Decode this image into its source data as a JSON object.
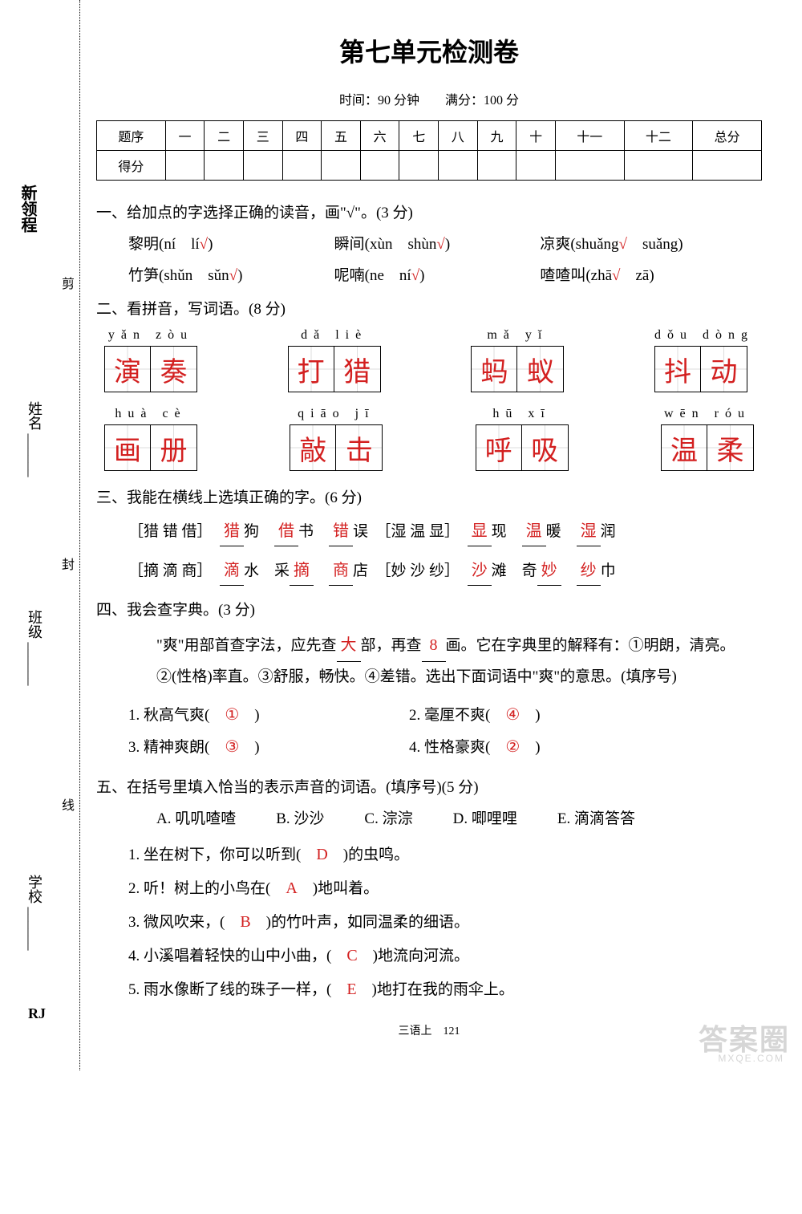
{
  "title": "第七单元检测卷",
  "subtitle": "时间：90 分钟　　满分：100 分",
  "brand": "新领程",
  "rj": "RJ",
  "side": {
    "name": "姓名",
    "class": "班级",
    "school": "学校",
    "cut": "剪",
    "seal": "封",
    "line": "线"
  },
  "score_headers": [
    "题序",
    "一",
    "二",
    "三",
    "四",
    "五",
    "六",
    "七",
    "八",
    "九",
    "十",
    "十一",
    "十二",
    "总分"
  ],
  "score_row2": "得分",
  "q1": {
    "title": "一、给加点的字选择正确的读音，画\"√\"。(3 分)",
    "items": [
      {
        "char": "黎",
        "word": "明",
        "opts": [
          "ní",
          "lí"
        ],
        "correct": 1
      },
      {
        "char": "瞬",
        "word": "间",
        "opts": [
          "xùn",
          "shùn"
        ],
        "correct": 1
      },
      {
        "char": "凉爽",
        "word": "",
        "opts": [
          "shuǎng",
          "suǎng"
        ],
        "correct": 0
      },
      {
        "char": "竹笋",
        "word": "",
        "opts": [
          "shǔn",
          "sǔn"
        ],
        "correct": 1
      },
      {
        "char": "呢喃",
        "word": "",
        "opts": [
          "ne",
          "ní"
        ],
        "correct": 1
      },
      {
        "char": "喳喳",
        "word": "叫",
        "opts": [
          "zhā",
          "zā"
        ],
        "correct": 0
      }
    ]
  },
  "q2": {
    "title": "二、看拼音，写词语。(8 分)",
    "row1": [
      {
        "pinyin": "yǎn zòu",
        "chars": [
          "演",
          "奏"
        ]
      },
      {
        "pinyin": "dǎ liè",
        "chars": [
          "打",
          "猎"
        ]
      },
      {
        "pinyin": "mǎ yǐ",
        "chars": [
          "蚂",
          "蚁"
        ]
      },
      {
        "pinyin": "dǒu dòng",
        "chars": [
          "抖",
          "动"
        ]
      }
    ],
    "row2": [
      {
        "pinyin": "huà cè",
        "chars": [
          "画",
          "册"
        ]
      },
      {
        "pinyin": "qiāo jī",
        "chars": [
          "敲",
          "击"
        ]
      },
      {
        "pinyin": "hū xī",
        "chars": [
          "呼",
          "吸"
        ]
      },
      {
        "pinyin": "wēn róu",
        "chars": [
          "温",
          "柔"
        ]
      }
    ]
  },
  "q3": {
    "title": "三、我能在横线上选填正确的字。(6 分)",
    "rows": [
      {
        "group": "［猎 错 借］",
        "blanks": [
          [
            "猎",
            "狗"
          ],
          [
            "借",
            "书"
          ],
          [
            "错",
            "误"
          ]
        ],
        "group2": "［湿 温 显］",
        "blanks2": [
          [
            "显",
            "现"
          ],
          [
            "温",
            "暖"
          ],
          [
            "湿",
            "润"
          ]
        ]
      },
      {
        "group": "［摘 滴 商］",
        "blanks": [
          [
            "滴",
            "水"
          ],
          [
            "采",
            "摘"
          ],
          [
            "商",
            "店"
          ]
        ],
        "group2": "［妙 沙 纱］",
        "blanks2": [
          [
            "沙",
            "滩"
          ],
          [
            "奇",
            "妙"
          ],
          [
            "纱",
            "巾"
          ]
        ],
        "swap": [
          false,
          true,
          false,
          false,
          true,
          false
        ]
      }
    ]
  },
  "q4": {
    "title": "四、我会查字典。(3 分)",
    "content_pre": "\"爽\"用部首查字法，应先查",
    "ans1": "大",
    "content_mid": "部，再查",
    "ans2": "8",
    "content_post": "画。它在字典里的解释有：①明朗，清亮。②(性格)率直。③舒服，畅快。④差错。选出下面词语中\"爽\"的意思。(填序号)",
    "items": [
      {
        "text": "1. 秋高气爽",
        "ans": "①"
      },
      {
        "text": "2. 毫厘不爽",
        "ans": "④"
      },
      {
        "text": "3. 精神爽朗",
        "ans": "③"
      },
      {
        "text": "4. 性格豪爽",
        "ans": "②"
      }
    ]
  },
  "q5": {
    "title": "五、在括号里填入恰当的表示声音的词语。(填序号)(5 分)",
    "options": [
      "A. 叽叽喳喳",
      "B. 沙沙",
      "C. 淙淙",
      "D. 唧哩哩",
      "E. 滴滴答答"
    ],
    "items": [
      {
        "pre": "1. 坐在树下，你可以听到(",
        "ans": "D",
        "post": ")的虫鸣。"
      },
      {
        "pre": "2. 听！树上的小鸟在(",
        "ans": "A",
        "post": ")地叫着。"
      },
      {
        "pre": "3. 微风吹来，(",
        "ans": "B",
        "post": ")的竹叶声，如同温柔的细语。"
      },
      {
        "pre": "4. 小溪唱着轻快的山中小曲，(",
        "ans": "C",
        "post": ")地流向河流。"
      },
      {
        "pre": "5. 雨水像断了线的珠子一样，(",
        "ans": "E",
        "post": ")地打在我的雨伞上。"
      }
    ]
  },
  "footer": "三语上　121",
  "watermark": "答案圈",
  "watermark_sub": "MXQE.COM"
}
